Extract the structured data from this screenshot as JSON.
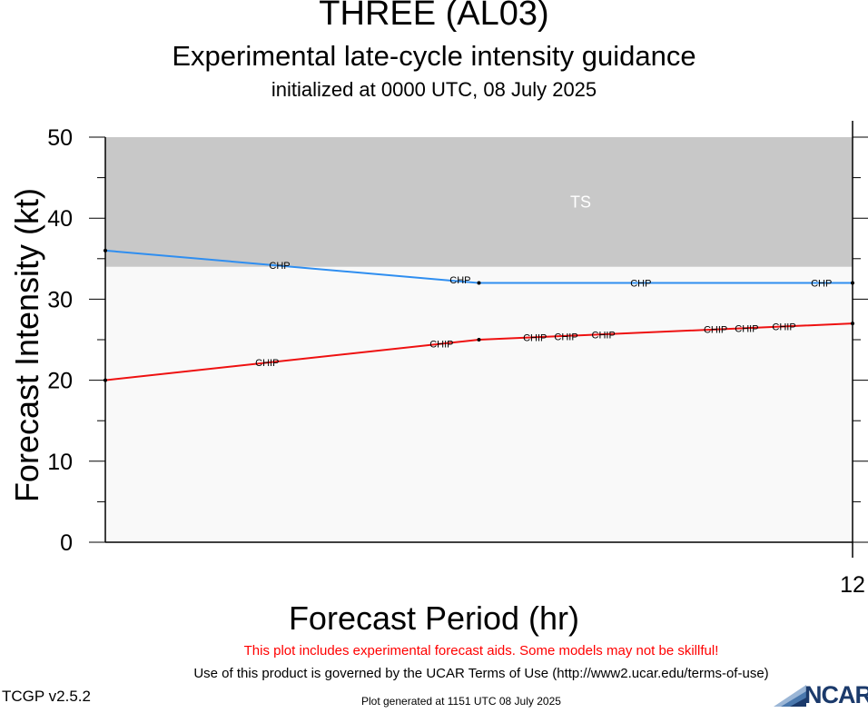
{
  "chart_data": {
    "type": "line",
    "title": "THREE (AL03)",
    "subtitle": "Experimental late-cycle intensity guidance",
    "initialized": "initialized at 0000 UTC, 08 July 2025",
    "xlabel": "Forecast Period (hr)",
    "ylabel": "Forecast Intensity (kt)",
    "xlim": [
      0,
      12
    ],
    "ylim": [
      0,
      50
    ],
    "x_ticks": [
      12
    ],
    "x_tick_labels": [
      "12"
    ],
    "y_ticks": [
      0,
      10,
      20,
      30,
      40,
      50
    ],
    "y_tick_labels": [
      "0",
      "10",
      "20",
      "30",
      "40",
      "50"
    ],
    "bands": [
      {
        "label": "TS",
        "from": 34,
        "to": 50,
        "color": "#c8c8c8"
      }
    ],
    "below_band_color": "#f9f9f9",
    "series": [
      {
        "color": "#2f8ef0",
        "x": [
          0,
          6,
          12
        ],
        "y": [
          36,
          32,
          32
        ],
        "marker_label": "CHP",
        "marker_x": [
          2.8,
          5.7,
          8.6,
          11.5
        ],
        "marker_y": [
          34.2,
          32.4,
          32,
          32
        ]
      },
      {
        "color": "#ee1111",
        "x": [
          0,
          6,
          12
        ],
        "y": [
          20,
          25,
          27
        ],
        "marker_label": "CHIP",
        "marker_x": [
          2.6,
          5.4,
          6.9,
          7.4,
          8.0,
          9.8,
          10.3,
          10.9
        ],
        "marker_y": [
          22.2,
          24.5,
          25.3,
          25.4,
          25.6,
          26.3,
          26.4,
          26.6
        ]
      }
    ]
  },
  "footer": {
    "warning": "This plot includes experimental forecast aids. Some models may not be skillful!",
    "terms": "Use of this product is governed by the UCAR Terms of Use (http://www2.ucar.edu/terms-of-use)",
    "version": "TCGP v2.5.2",
    "generated": "Plot generated at 1151 UTC   08 July 2025",
    "logo_text": "NCAR"
  }
}
